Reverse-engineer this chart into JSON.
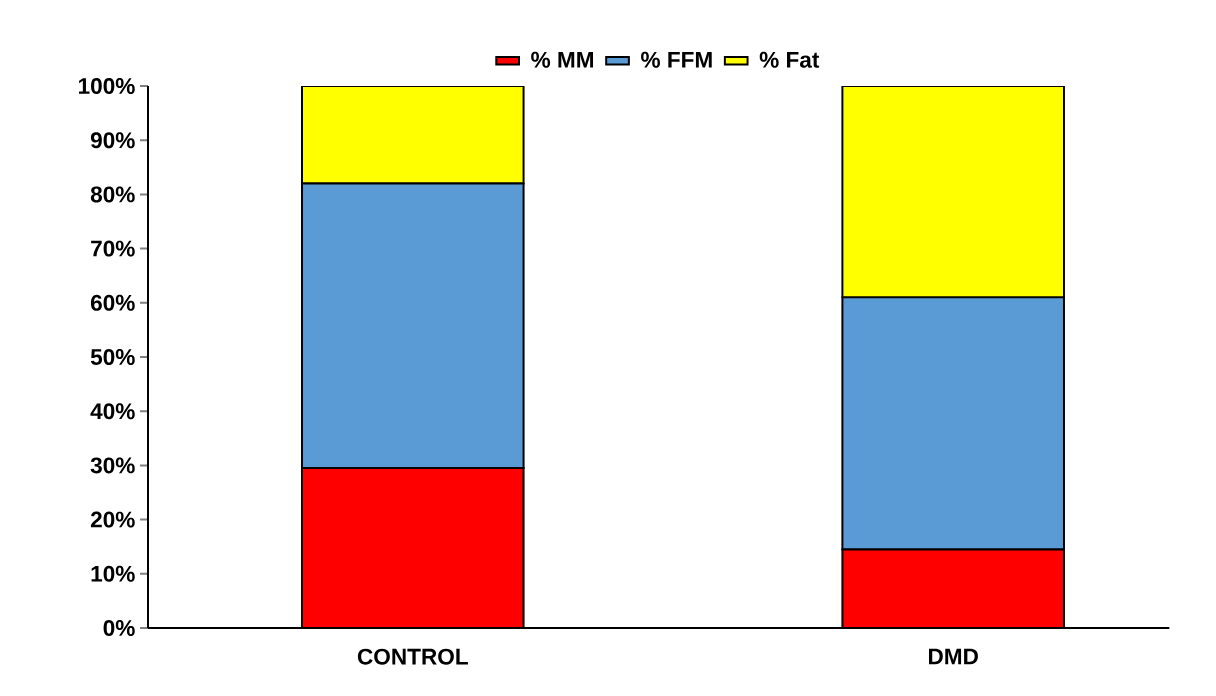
{
  "chart_data": {
    "type": "bar",
    "stacked": true,
    "categories": [
      "CONTROL",
      "DMD"
    ],
    "series": [
      {
        "name": "% MM",
        "color": "#ff0000",
        "values": [
          29.5,
          14.5
        ]
      },
      {
        "name": "% FFM",
        "color": "#5b9bd5",
        "values": [
          52.5,
          46.5
        ]
      },
      {
        "name": "% Fat",
        "color": "#ffff00",
        "values": [
          18,
          39
        ]
      }
    ],
    "ylim": [
      0,
      100
    ],
    "yticks": [
      {
        "value": 0,
        "label": "0%"
      },
      {
        "value": 10,
        "label": "10%"
      },
      {
        "value": 20,
        "label": "20%"
      },
      {
        "value": 30,
        "label": "30%"
      },
      {
        "value": 40,
        "label": "40%"
      },
      {
        "value": 50,
        "label": "50%"
      },
      {
        "value": 60,
        "label": "60%"
      },
      {
        "value": 70,
        "label": "70%"
      },
      {
        "value": 80,
        "label": "80%"
      },
      {
        "value": 90,
        "label": "90%"
      },
      {
        "value": 100,
        "label": "100%"
      }
    ],
    "legend": "top"
  }
}
